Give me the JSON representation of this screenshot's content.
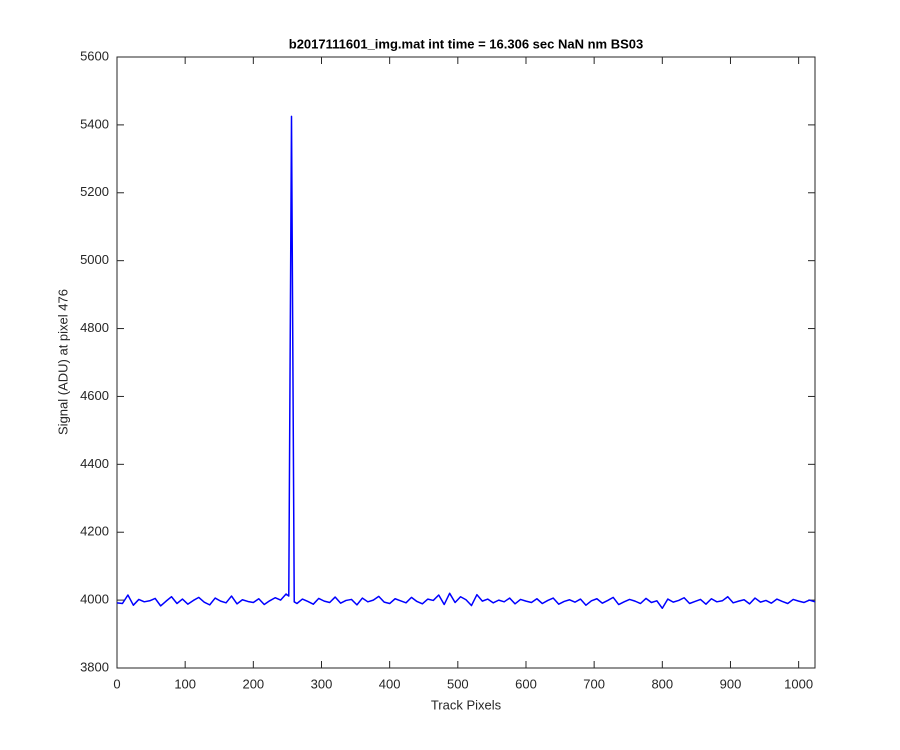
{
  "chart_data": {
    "type": "line",
    "title": "b2017111601_img.mat int time = 16.306 sec  NaN nm BS03",
    "x_label": "Track Pixels",
    "y_label": "Signal (ADU) at pixel 476",
    "color": "#0000ff",
    "xlim": [
      0,
      1024
    ],
    "ylim": [
      3800,
      5600
    ],
    "xticks": [
      0,
      100,
      200,
      300,
      400,
      500,
      600,
      700,
      800,
      900,
      1000
    ],
    "yticks": [
      3800,
      4000,
      4200,
      4400,
      4600,
      4800,
      5000,
      5200,
      5400,
      5600
    ],
    "x": [
      0,
      8,
      16,
      24,
      32,
      40,
      48,
      56,
      64,
      72,
      80,
      88,
      96,
      104,
      112,
      120,
      128,
      136,
      144,
      152,
      160,
      168,
      176,
      184,
      192,
      200,
      208,
      216,
      224,
      232,
      240,
      248,
      252,
      256,
      260,
      264,
      272,
      280,
      288,
      296,
      304,
      312,
      320,
      328,
      336,
      344,
      352,
      360,
      368,
      376,
      384,
      392,
      400,
      408,
      416,
      424,
      432,
      440,
      448,
      456,
      464,
      472,
      480,
      488,
      496,
      504,
      512,
      520,
      528,
      536,
      544,
      552,
      560,
      568,
      576,
      584,
      592,
      600,
      608,
      616,
      624,
      632,
      640,
      648,
      656,
      664,
      672,
      680,
      688,
      696,
      704,
      712,
      720,
      728,
      736,
      744,
      752,
      760,
      768,
      776,
      784,
      792,
      800,
      808,
      816,
      824,
      832,
      840,
      848,
      856,
      864,
      872,
      880,
      888,
      896,
      904,
      912,
      920,
      928,
      936,
      944,
      952,
      960,
      968,
      976,
      984,
      992,
      1000,
      1008,
      1016,
      1024
    ],
    "values": [
      3992,
      3990,
      4015,
      3985,
      4002,
      3995,
      3998,
      4005,
      3983,
      3997,
      4010,
      3990,
      4003,
      3988,
      3999,
      4008,
      3994,
      3986,
      4006,
      3997,
      3992,
      4012,
      3989,
      4001,
      3996,
      3993,
      4004,
      3987,
      3998,
      4007,
      4000,
      4018,
      4012,
      5425,
      3995,
      3990,
      4003,
      3996,
      3988,
      4005,
      3997,
      3993,
      4009,
      3991,
      3999,
      4002,
      3986,
      4006,
      3995,
      4000,
      4011,
      3994,
      3990,
      4004,
      3998,
      3992,
      4008,
      3996,
      3989,
      4003,
      3999,
      4015,
      3987,
      4020,
      3993,
      4010,
      4001,
      3984,
      4016,
      3997,
      4003,
      3992,
      4000,
      3995,
      4006,
      3989,
      4002,
      3997,
      3993,
      4004,
      3990,
      3999,
      4006,
      3988,
      3996,
      4001,
      3994,
      4003,
      3985,
      3998,
      4004,
      3991,
      3999,
      4008,
      3987,
      3995,
      4002,
      3997,
      3990,
      4005,
      3993,
      3998,
      3976,
      4003,
      3994,
      3999,
      4007,
      3990,
      3996,
      4002,
      3988,
      4004,
      3995,
      3998,
      4010,
      3992,
      3997,
      4001,
      3989,
      4006,
      3994,
      3999,
      3991,
      4003,
      3996,
      3990,
      4002,
      3997,
      3993,
      4000,
      3995
    ]
  }
}
